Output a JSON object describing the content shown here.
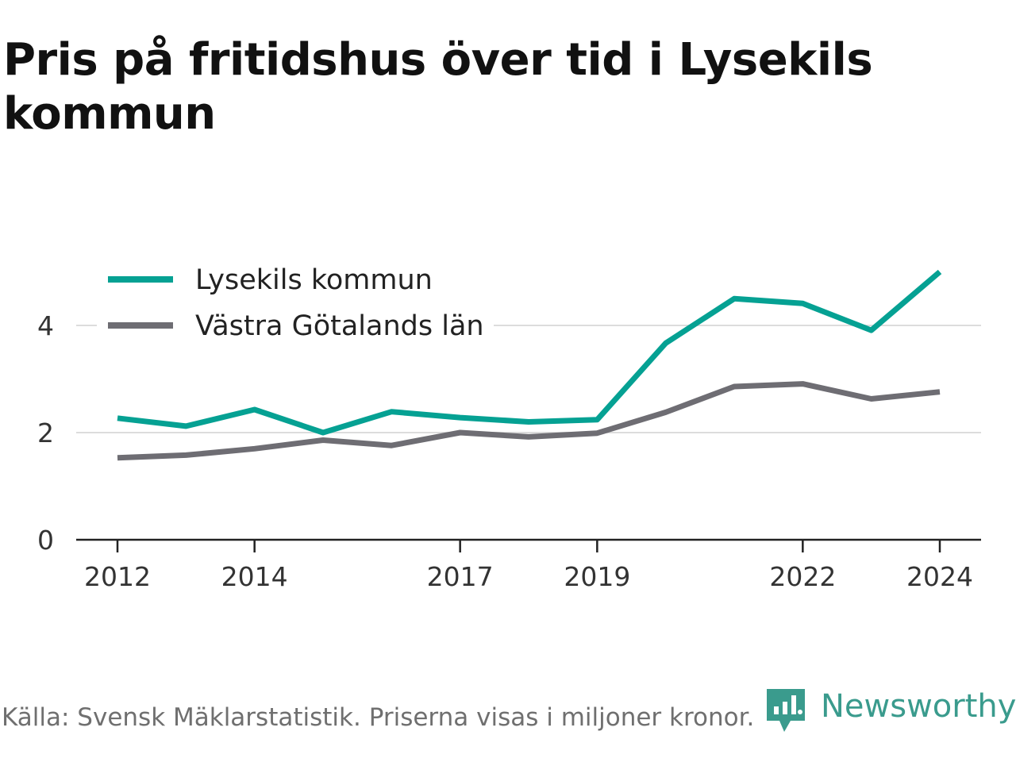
{
  "chart_data": {
    "type": "line",
    "title": "Pris på fritidshus över tid i Lysekils kommun",
    "x": [
      2012,
      2013,
      2014,
      2015,
      2016,
      2017,
      2018,
      2019,
      2020,
      2021,
      2022,
      2023,
      2024
    ],
    "x_ticks": [
      "2012",
      "2014",
      "2017",
      "2019",
      "2022",
      "2024"
    ],
    "y_ticks": [
      "0",
      "2",
      "4"
    ],
    "ylim": [
      0,
      5.2
    ],
    "grid": true,
    "legend_position": "top-left",
    "series": [
      {
        "name": "Lysekils kommun",
        "color": "#05a193",
        "values": [
          2.27,
          2.12,
          2.43,
          2.0,
          2.39,
          2.28,
          2.2,
          2.24,
          3.67,
          4.5,
          4.41,
          3.91,
          5.0
        ]
      },
      {
        "name": "Västra Götalands län",
        "color": "#6e6d73",
        "values": [
          1.53,
          1.58,
          1.7,
          1.86,
          1.76,
          2.0,
          1.92,
          1.99,
          2.38,
          2.86,
          2.91,
          2.63,
          2.76
        ]
      }
    ]
  },
  "footer": {
    "source": "Källa: Svensk Mäklarstatistik. Priserna visas i miljoner kronor.",
    "brand": "Newsworthy",
    "brand_color": "#3a9b8d",
    "brand_icon": "newsworthy-logo-icon"
  }
}
